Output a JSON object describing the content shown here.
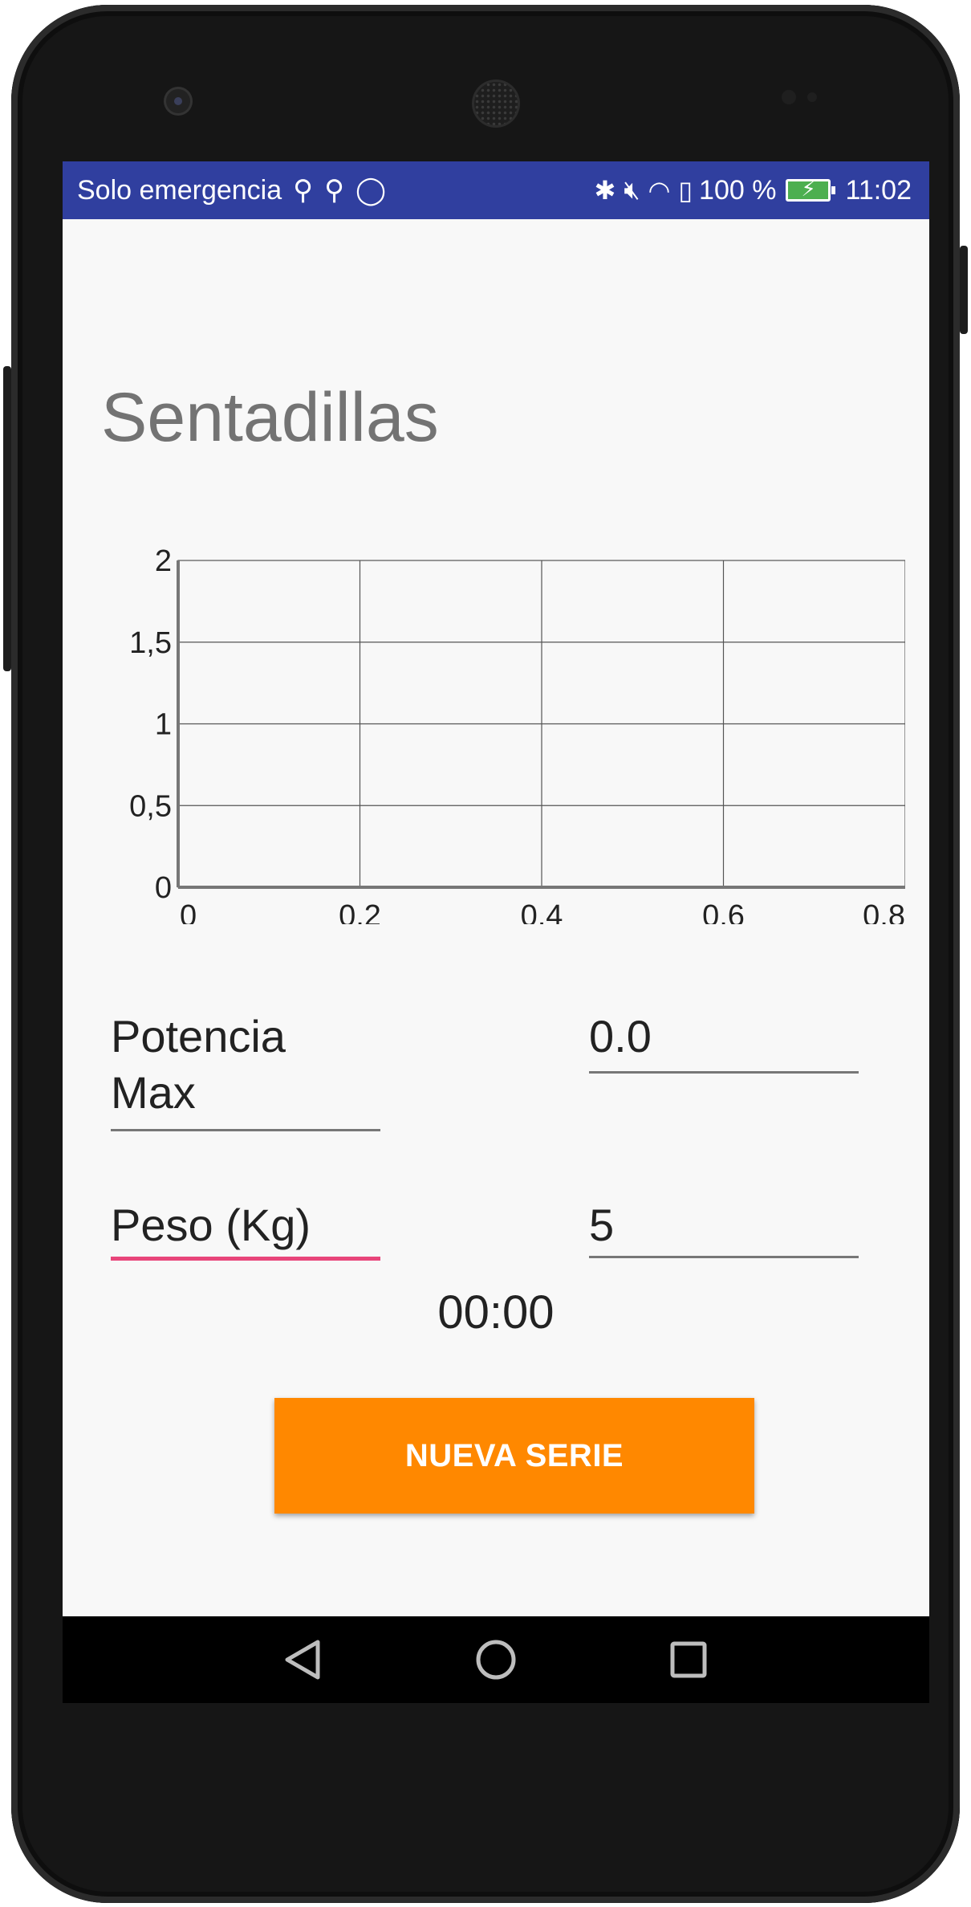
{
  "status_bar": {
    "carrier": "Solo emergencia",
    "battery_percent": "100 %",
    "time": "11:02",
    "left_icons": [
      "usb-icon",
      "usb-icon",
      "watch-icon"
    ],
    "right_icons": [
      "bluetooth-icon",
      "mute-icon",
      "wifi-icon",
      "sim-alert-icon"
    ],
    "background": "#303f9f"
  },
  "page": {
    "title": "Sentadillas"
  },
  "chart_data": {
    "type": "line",
    "x_ticks": [
      "0",
      "0,2",
      "0,4",
      "0,6",
      "0,8"
    ],
    "y_ticks": [
      "2",
      "1,5",
      "1",
      "0,5",
      "0"
    ],
    "xlim": [
      0,
      0.8
    ],
    "ylim": [
      0,
      2
    ],
    "grid": true,
    "series": []
  },
  "fields": {
    "potencia_label": "Potencia\nMax",
    "potencia_value": "0.0",
    "peso_label": "Peso (Kg)",
    "peso_value": "5"
  },
  "timer": "00:00",
  "button": {
    "label": "NUEVA SERIE",
    "color": "#ff8800"
  },
  "nav": {
    "back": "back-icon",
    "home": "home-icon",
    "recents": "recents-icon"
  }
}
